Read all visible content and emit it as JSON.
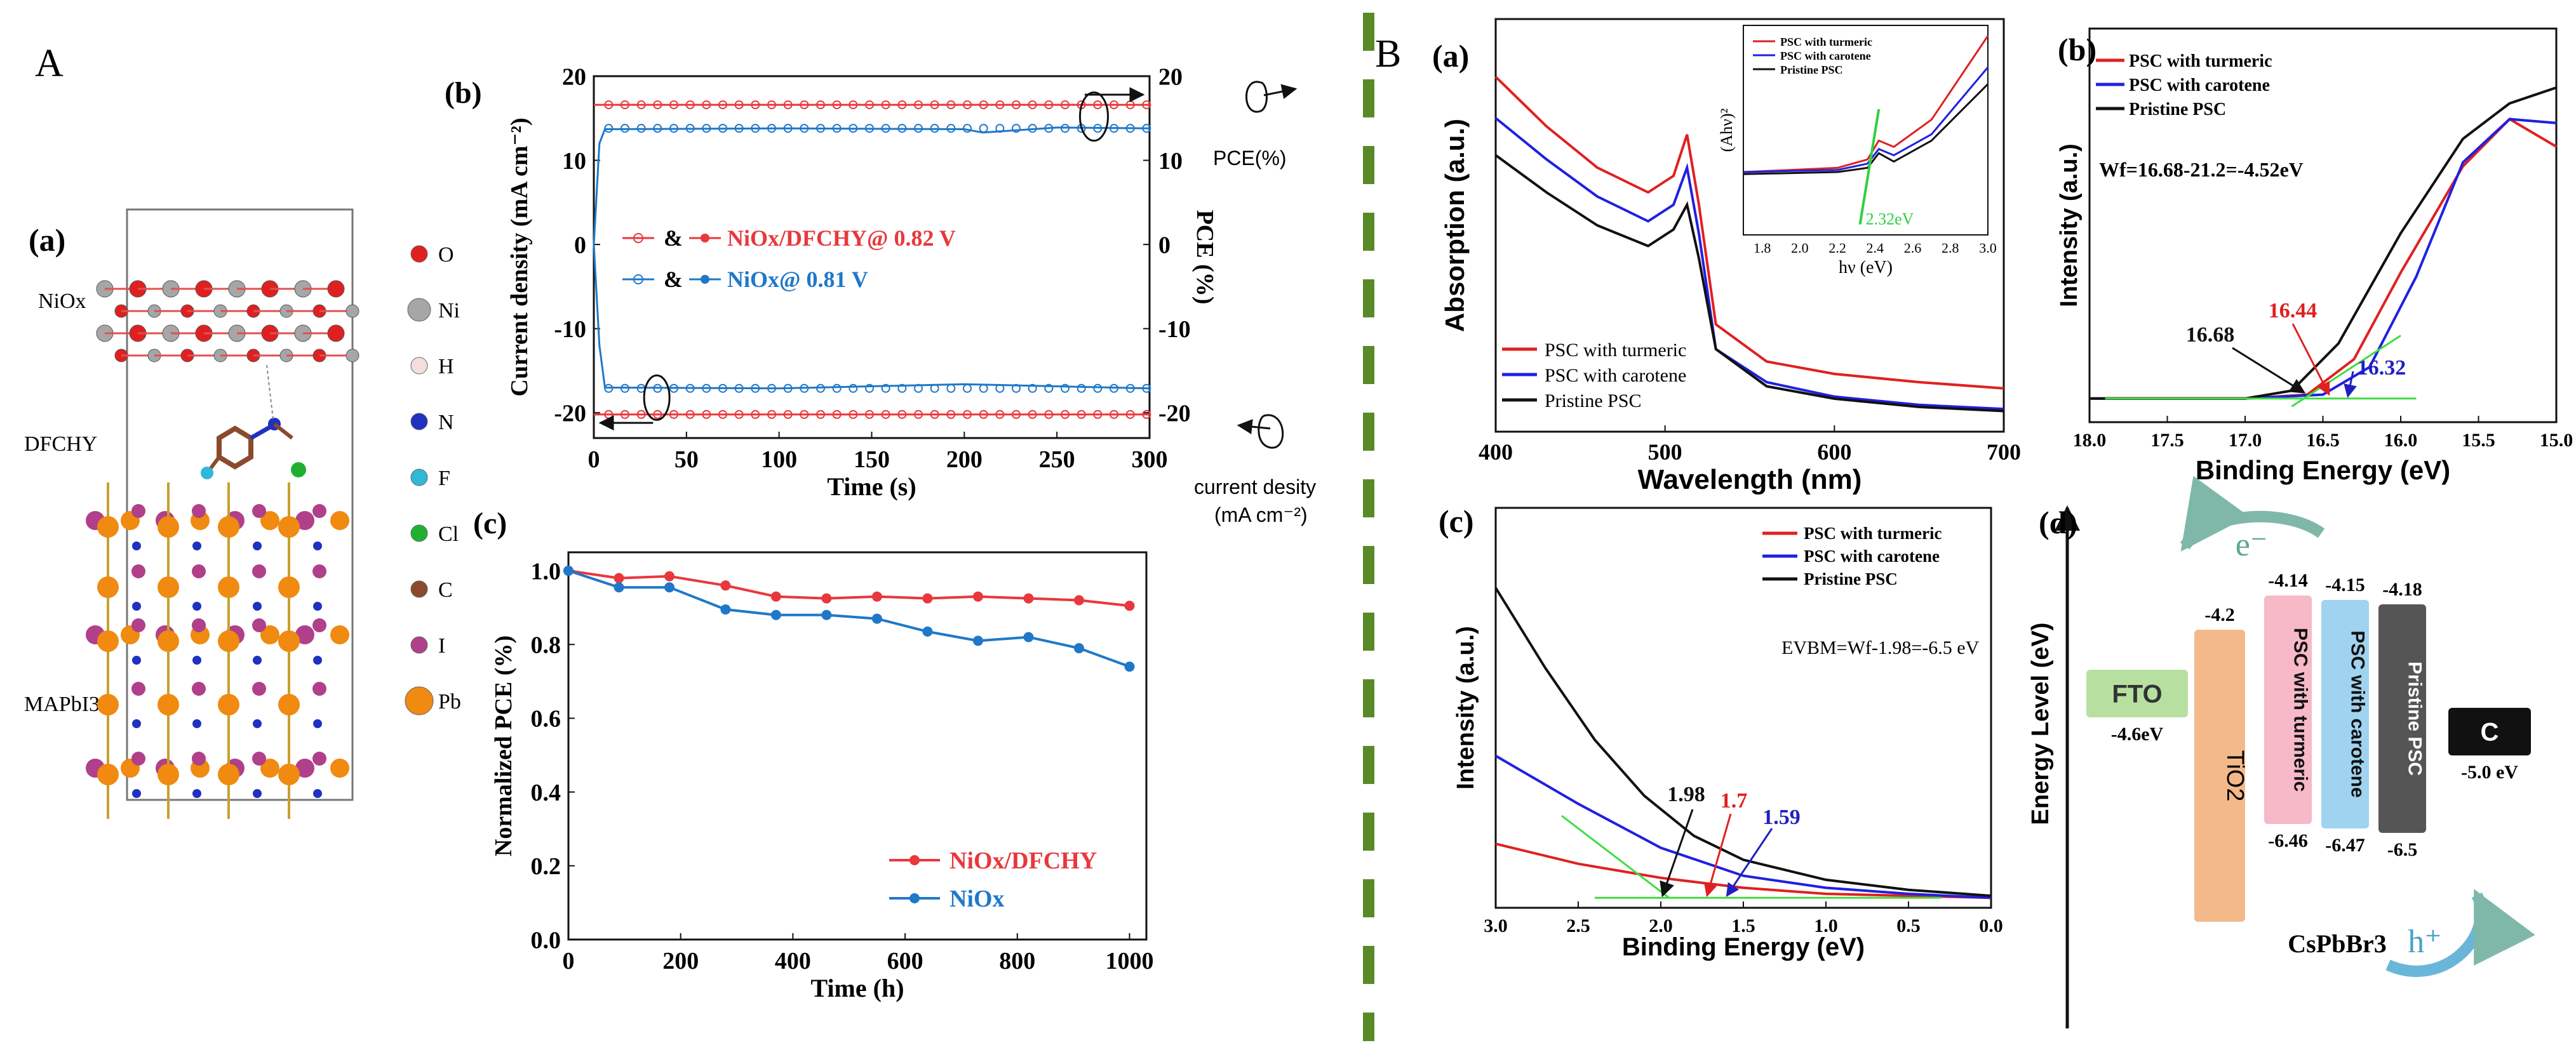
{
  "figure": {
    "partA_label": "A",
    "partB_label": "B",
    "divider_color": "#5a8a28"
  },
  "structure": {
    "panel_label": "(a)",
    "layer_labels": [
      "NiOx",
      "DFCHY",
      "MAPbI3"
    ],
    "legend": [
      {
        "symbol": "O",
        "color": "#e02020"
      },
      {
        "symbol": "Ni",
        "color": "#a6a6a6"
      },
      {
        "symbol": "H",
        "color": "#f3dede"
      },
      {
        "symbol": "N",
        "color": "#2030c0"
      },
      {
        "symbol": "F",
        "color": "#30b8d8"
      },
      {
        "symbol": "Cl",
        "color": "#20b030"
      },
      {
        "symbol": "C",
        "color": "#8b4a2b"
      },
      {
        "symbol": "I",
        "color": "#b0408a"
      },
      {
        "symbol": "Pb",
        "color": "#f08a10"
      }
    ]
  },
  "annotations_b": {
    "pce_label": "PCE(%)",
    "current_label_1": "current desity",
    "current_label_2": "(mA cm⁻²)"
  },
  "chart_data": [
    {
      "id": "A-b",
      "panel": "(b)",
      "type": "line",
      "xlabel": "Time (s)",
      "ylabel_left": "Current density (mA cm⁻²)",
      "ylabel_right": "PCE (%)",
      "xlim": [
        0,
        300
      ],
      "xticks": [
        0,
        50,
        100,
        150,
        200,
        250,
        300
      ],
      "ylim": [
        -23,
        20
      ],
      "yticks": [
        -20,
        -10,
        0,
        10,
        20
      ],
      "legend": [
        {
          "amp": "&",
          "name": "NiOx/DFCHY@ 0.82 V",
          "color": "#e8383d"
        },
        {
          "amp": "&",
          "name": "NiOx@ 0.81 V",
          "color": "#1f78c8"
        }
      ],
      "series": [
        {
          "name": "NiOx/DFCHY PCE",
          "color": "#e8383d",
          "x": [
            0,
            300
          ],
          "y": [
            16.6,
            16.6
          ]
        },
        {
          "name": "NiOx PCE",
          "color": "#1f78c8",
          "x": [
            0,
            3,
            6,
            100,
            200,
            210,
            250,
            300
          ],
          "y": [
            0,
            12,
            13.7,
            13.8,
            13.7,
            13.3,
            13.9,
            13.8
          ]
        },
        {
          "name": "NiOx/DFCHY current",
          "color": "#e8383d",
          "x": [
            0,
            300
          ],
          "y": [
            -20.2,
            -20.2
          ]
        },
        {
          "name": "NiOx current",
          "color": "#1f78c8",
          "x": [
            0,
            3,
            6,
            100,
            200,
            300
          ],
          "y": [
            0,
            -12,
            -17.0,
            -17.1,
            -16.6,
            -17.1
          ]
        }
      ]
    },
    {
      "id": "A-c",
      "panel": "(c)",
      "type": "line",
      "xlabel": "Time (h)",
      "ylabel": "Normalized PCE (%)",
      "xlim": [
        0,
        1030
      ],
      "xticks": [
        0,
        200,
        400,
        600,
        800,
        1000
      ],
      "ylim": [
        0,
        1.05
      ],
      "yticks": [
        0.0,
        0.2,
        0.4,
        0.6,
        0.8,
        1.0
      ],
      "legend_position": "bottom-right",
      "series": [
        {
          "name": "NiOx/DFCHY",
          "color": "#e8383d",
          "x": [
            0,
            90,
            180,
            280,
            370,
            460,
            550,
            640,
            730,
            820,
            910,
            1000
          ],
          "y": [
            1.0,
            0.98,
            0.985,
            0.96,
            0.93,
            0.925,
            0.93,
            0.925,
            0.93,
            0.925,
            0.92,
            0.905
          ]
        },
        {
          "name": "NiOx",
          "color": "#1f78c8",
          "x": [
            0,
            90,
            180,
            280,
            370,
            460,
            550,
            640,
            730,
            820,
            910,
            1000
          ],
          "y": [
            1.0,
            0.955,
            0.955,
            0.895,
            0.88,
            0.88,
            0.87,
            0.835,
            0.81,
            0.82,
            0.79,
            0.74
          ]
        }
      ]
    },
    {
      "id": "B-a",
      "panel": "(a)",
      "type": "line",
      "xlabel": "Wavelength (nm)",
      "ylabel": "Absorption (a.u.)",
      "xlim": [
        400,
        700
      ],
      "xticks": [
        400,
        500,
        600,
        700
      ],
      "ylim": [
        0,
        1
      ],
      "legend": [
        "PSC with turmeric",
        "PSC with carotene",
        "Pristine PSC"
      ],
      "series": [
        {
          "name": "PSC with turmeric",
          "color": "#e02020",
          "x": [
            400,
            430,
            460,
            490,
            505,
            513,
            520,
            530,
            560,
            600,
            650,
            700
          ],
          "y": [
            0.86,
            0.74,
            0.64,
            0.58,
            0.62,
            0.72,
            0.55,
            0.26,
            0.17,
            0.14,
            0.12,
            0.105
          ]
        },
        {
          "name": "PSC with carotene",
          "color": "#2020e0",
          "x": [
            400,
            430,
            460,
            490,
            505,
            513,
            520,
            530,
            560,
            600,
            650,
            700
          ],
          "y": [
            0.76,
            0.66,
            0.57,
            0.51,
            0.55,
            0.64,
            0.48,
            0.2,
            0.12,
            0.085,
            0.065,
            0.055
          ]
        },
        {
          "name": "Pristine PSC",
          "color": "#111111",
          "x": [
            400,
            430,
            460,
            490,
            505,
            513,
            520,
            530,
            560,
            600,
            650,
            700
          ],
          "y": [
            0.67,
            0.58,
            0.5,
            0.45,
            0.49,
            0.55,
            0.42,
            0.2,
            0.11,
            0.08,
            0.06,
            0.05
          ]
        }
      ],
      "inset": {
        "xlabel": "hν (eV)",
        "ylabel": "(Ahν)²",
        "xlim": [
          1.7,
          3.0
        ],
        "xticks": [
          1.8,
          2.0,
          2.2,
          2.4,
          2.6,
          2.8,
          3.0
        ],
        "bandgap_label": "2.32eV",
        "legend": [
          "PSC with turmeric",
          "PSC with carotene",
          "Pristine PSC"
        ]
      }
    },
    {
      "id": "B-b",
      "panel": "(b)",
      "type": "line",
      "xlabel": "Binding Energy (eV)",
      "ylabel": "Intensity (a.u.)",
      "xlim": [
        18.0,
        15.0
      ],
      "xticks": [
        18.0,
        17.5,
        17.0,
        16.5,
        16.0,
        15.5,
        15.0
      ],
      "legend": [
        "PSC with turmeric",
        "PSC with carotene",
        "Pristine PSC"
      ],
      "annotation": "Wf=16.68-21.2=-4.52eV",
      "markers": [
        {
          "value": "16.68",
          "color": "#111111"
        },
        {
          "value": "16.44",
          "color": "#e02020"
        },
        {
          "value": "16.32",
          "color": "#2020c0"
        }
      ]
    },
    {
      "id": "B-c",
      "panel": "(c)",
      "type": "line",
      "xlabel": "Binding Energy (eV)",
      "ylabel": "Intensity (a.u.)",
      "xlim": [
        3.0,
        0.0
      ],
      "xticks": [
        3.0,
        2.5,
        2.0,
        1.5,
        1.0,
        0.5,
        0.0
      ],
      "legend": [
        "PSC with turmeric",
        "PSC with carotene",
        "Pristine PSC"
      ],
      "annotation": "EVBM=Wf-1.98=-6.5 eV",
      "markers": [
        {
          "value": "1.98",
          "color": "#111111"
        },
        {
          "value": "1.7",
          "color": "#e02020"
        },
        {
          "value": "1.59",
          "color": "#2020c0"
        }
      ]
    },
    {
      "id": "B-d",
      "panel": "(d)",
      "type": "diagram",
      "ylabel": "Energy Level (eV)",
      "electron": "e⁻",
      "hole": "h⁺",
      "absorber": "CsPbBr3",
      "blocks": [
        {
          "label": "FTO",
          "top": "",
          "bottom": "-4.6eV",
          "color": "#b7e0a0"
        },
        {
          "label": "TiO2",
          "top": "-4.2",
          "bottom": "",
          "color": "#f4b98a"
        },
        {
          "label": "PSC with turmeric",
          "top": "-4.14",
          "bottom": "-6.46",
          "color": "#f7b8c8"
        },
        {
          "label": "PSC with carotene",
          "top": "-4.15",
          "bottom": "-6.47",
          "color": "#9fd3f0"
        },
        {
          "label": "Pristine PSC",
          "top": "-4.18",
          "bottom": "-6.5",
          "color": "#555555"
        },
        {
          "label": "C",
          "top": "",
          "bottom": "-5.0 eV",
          "color": "#111111"
        }
      ]
    }
  ]
}
